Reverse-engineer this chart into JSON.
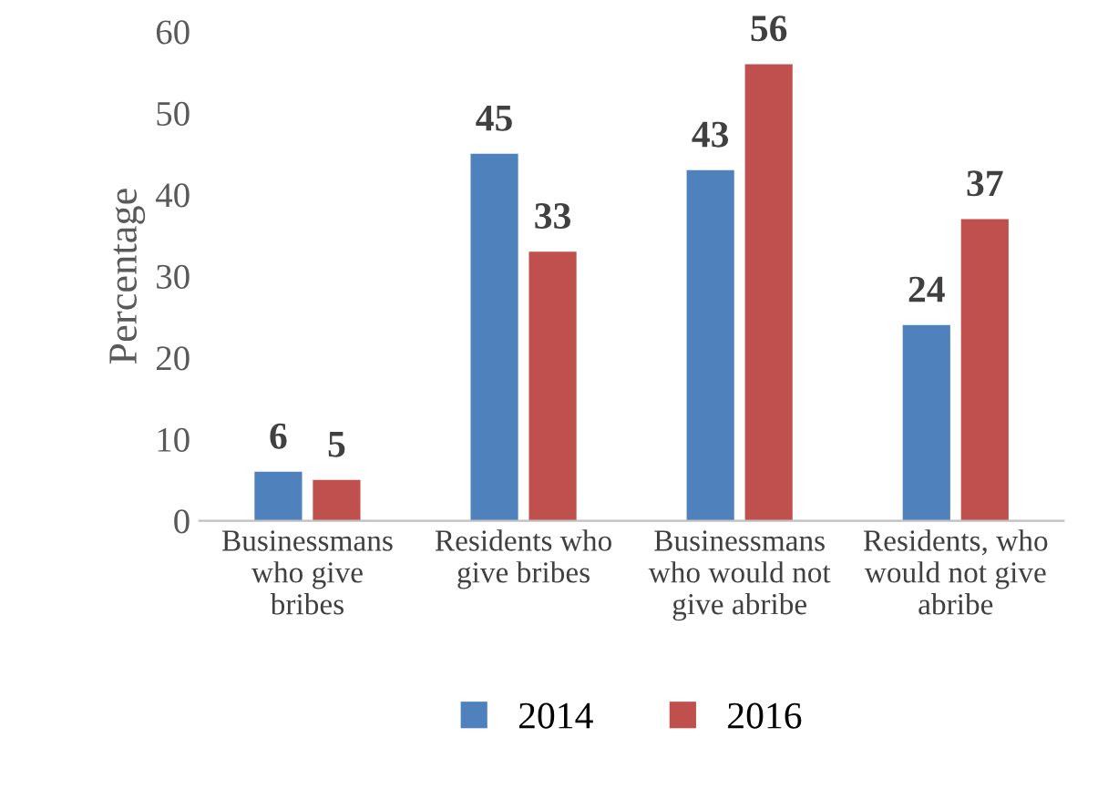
{
  "chart_data": {
    "type": "bar",
    "ylabel": "Percentage",
    "categories": [
      "Businessmans\nwho give\nbribes",
      "Residents who\ngive bribes",
      "Businessmans\nwho would not\ngive abribe",
      "Residents, who\nwould not give\nabribe"
    ],
    "series": [
      {
        "name": "2014",
        "color": "#4f81bd",
        "values": [
          6,
          45,
          43,
          24
        ]
      },
      {
        "name": "2016",
        "color": "#c0504d",
        "values": [
          5,
          33,
          56,
          37
        ]
      }
    ],
    "ylim": [
      0,
      60
    ],
    "yticks": [
      0,
      10,
      20,
      30,
      40,
      50,
      60
    ],
    "grid": false,
    "legend": "bottom",
    "data_labels": true
  }
}
